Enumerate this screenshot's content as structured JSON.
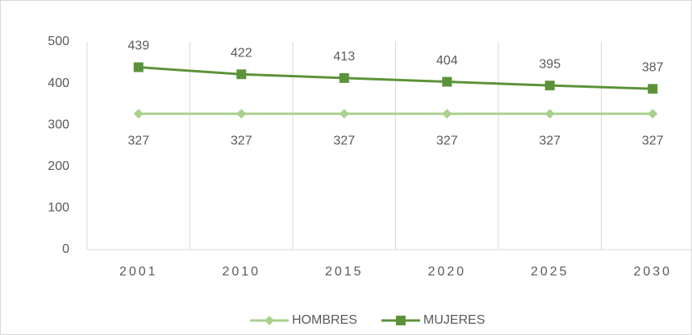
{
  "chart_data": {
    "type": "line",
    "categories": [
      "2001",
      "2010",
      "2015",
      "2020",
      "2025",
      "2030"
    ],
    "series": [
      {
        "name": "HOMBRES",
        "color": "#a9d18e",
        "marker": "diamond",
        "label_position": "below",
        "values": [
          327,
          327,
          327,
          327,
          327,
          327
        ]
      },
      {
        "name": "MUJERES",
        "color": "#5b9239",
        "marker": "square",
        "label_position": "above",
        "values": [
          439,
          422,
          413,
          404,
          395,
          387
        ]
      }
    ],
    "ylim": [
      0,
      500
    ],
    "yticks": [
      0,
      100,
      200,
      300,
      400,
      500
    ],
    "grid": true,
    "legend": "bottom"
  }
}
